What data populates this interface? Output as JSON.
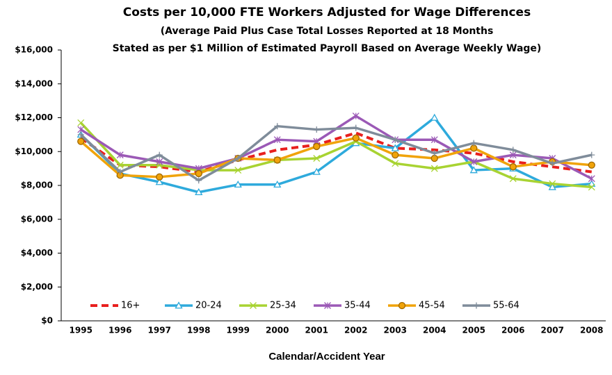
{
  "chart_data": {
    "type": "line",
    "title": "Costs per 10,000 FTE Workers Adjusted for Wage Differences",
    "subtitle": [
      "(Average Paid Plus Case Total Losses Reported at 18 Months",
      "Stated as per $1 Million of Estimated Payroll Based on Average Weekly Wage)"
    ],
    "x_label": "Calendar/Accident Year",
    "categories": [
      "1995",
      "1996",
      "1997",
      "1998",
      "1999",
      "2000",
      "2001",
      "2002",
      "2003",
      "2004",
      "2005",
      "2006",
      "2007",
      "2008"
    ],
    "ylim": [
      0,
      16000
    ],
    "yticks": [
      {
        "value": 0,
        "label": "$0"
      },
      {
        "value": 2000,
        "label": "$2,000"
      },
      {
        "value": 4000,
        "label": "$4,000"
      },
      {
        "value": 6000,
        "label": "$6,000"
      },
      {
        "value": 8000,
        "label": "$8,000"
      },
      {
        "value": 10000,
        "label": "$10,000"
      },
      {
        "value": 12000,
        "label": "$12,000"
      },
      {
        "value": 14000,
        "label": "$14,000"
      },
      {
        "value": 16000,
        "label": "$16,000"
      }
    ],
    "legend_position": "bottom",
    "series": [
      {
        "name": "16+",
        "color": "#e8201e",
        "dashed": true,
        "marker": "none",
        "values": [
          10800,
          9200,
          9100,
          8800,
          9500,
          10100,
          10400,
          11100,
          10200,
          10100,
          9900,
          9400,
          9100,
          8800
        ]
      },
      {
        "name": "20-24",
        "color": "#2eaadc",
        "marker": "triangle",
        "values": [
          11000,
          8700,
          8200,
          7600,
          8050,
          8050,
          8800,
          10500,
          10200,
          12000,
          8900,
          9000,
          7900,
          8100
        ]
      },
      {
        "name": "25-34",
        "color": "#a8d332",
        "marker": "x",
        "values": [
          11700,
          9200,
          9200,
          8900,
          8900,
          9500,
          9600,
          10600,
          9300,
          9000,
          9400,
          8400,
          8100,
          7900
        ]
      },
      {
        "name": "35-44",
        "color": "#9b59b6",
        "marker": "star",
        "values": [
          11300,
          9800,
          9400,
          9000,
          9600,
          10700,
          10600,
          12100,
          10700,
          10700,
          9400,
          9800,
          9600,
          8400
        ]
      },
      {
        "name": "45-54",
        "color": "#f0a30a",
        "marker": "circle",
        "values": [
          10600,
          8600,
          8500,
          8700,
          9600,
          9500,
          10300,
          10800,
          9800,
          9600,
          10200,
          9100,
          9400,
          9200
        ]
      },
      {
        "name": "55-64",
        "color": "#7f8c9a",
        "marker": "plus",
        "values": [
          11000,
          8800,
          9800,
          8300,
          9600,
          11500,
          11300,
          11400,
          10700,
          9900,
          10500,
          10100,
          9300,
          9800
        ]
      }
    ]
  }
}
